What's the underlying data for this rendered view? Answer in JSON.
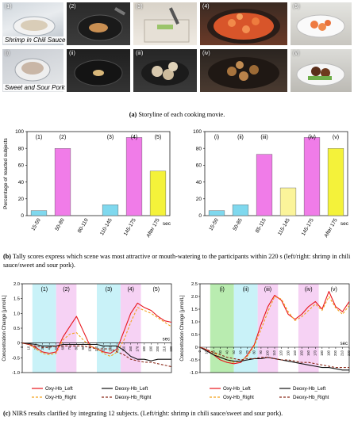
{
  "panel_a": {
    "row1_label": "Shrimp in Chili Sauce",
    "row2_label": "Sweet and Sour Pork",
    "row1_numbers": [
      "(1)",
      "(2)",
      "(3)",
      "(4)",
      "(5)"
    ],
    "row2_numbers": [
      "(i)",
      "(ii)",
      "(iii)",
      "(iv)",
      "(v)"
    ],
    "caption_letter": "(a)",
    "caption_text": " Storyline of each cooking movie."
  },
  "panel_b": {
    "caption_letter": "(b)",
    "caption_text": " Tally scores express which scene was most attractive or mouth-watering to the participants within 220 s (left/right: shrimp in chili sauce/sweet and sour pork)."
  },
  "panel_c": {
    "caption_letter": "(c)",
    "caption_text": " NIRS results clarified by integrating 12 subjects. (Left/right: shrimp in chili sauce/sweet and sour pork)."
  },
  "colors": {
    "bar_cyan": "#7fd8ee",
    "bar_magenta": "#f07ce8",
    "bar_yellow": "#f4f23a",
    "bar_paleyellow": "#fbf49a",
    "oxy_left": "#e8151b",
    "oxy_right": "#f3a21f",
    "deoxy_left": "#111111",
    "deoxy_right": "#8b2a1a",
    "band_cyan": "#c9f2f8",
    "band_magenta": "#f6d2f4",
    "band_green": "#b9ecb0"
  },
  "chart_data": [
    {
      "type": "bar",
      "ylabel": "Percentage of reacted subjects",
      "xunit": "sec",
      "ylim": [
        0,
        100
      ],
      "yticks": [
        0,
        20,
        40,
        60,
        80,
        100
      ],
      "categories": [
        "15-50",
        "50-80",
        "80-110",
        "110-145",
        "145-175",
        "After 175"
      ],
      "values": [
        6,
        80,
        0,
        13,
        93,
        53
      ],
      "bar_colors": [
        "cyan",
        "magenta",
        "cyan",
        "cyan",
        "magenta",
        "yellow"
      ],
      "scene_labels": [
        {
          "label": "(1)",
          "category": 0
        },
        {
          "label": "(2)",
          "category": 1
        },
        {
          "label": "(3)",
          "category": 3
        },
        {
          "label": "(4)",
          "category": 4
        },
        {
          "label": "(5)",
          "category": 5
        }
      ]
    },
    {
      "type": "bar",
      "ylabel": "",
      "xunit": "sec",
      "ylim": [
        0,
        100
      ],
      "yticks": [
        0,
        20,
        40,
        60,
        80,
        100
      ],
      "categories": [
        "15-50",
        "50-85",
        "85-115",
        "115-145",
        "145-175",
        "After 175"
      ],
      "values": [
        6,
        13,
        73,
        33,
        93,
        80
      ],
      "bar_colors": [
        "cyan",
        "cyan",
        "magenta",
        "paleyellow",
        "magenta",
        "yellow"
      ],
      "scene_labels": [
        {
          "label": "(i)",
          "category": 0
        },
        {
          "label": "(ii)",
          "category": 1
        },
        {
          "label": "(iii)",
          "category": 2
        },
        {
          "label": "(iv)",
          "category": 4
        },
        {
          "label": "(v)",
          "category": 5
        }
      ]
    },
    {
      "type": "line",
      "ylabel": "Concentration Change [μmol/L]",
      "xunit": "sec",
      "xlim": [
        0,
        220
      ],
      "ylim": [
        -1.0,
        2.0
      ],
      "yticks": [
        -1.0,
        -0.5,
        0.0,
        0.5,
        1.0,
        1.5,
        2.0
      ],
      "yticklabels": [
        "-1.0",
        "-0.5",
        "0",
        "0.5",
        "1.0",
        "1.5",
        "2.0"
      ],
      "xticks": [
        0,
        10,
        20,
        30,
        40,
        50,
        60,
        70,
        80,
        90,
        100,
        110,
        120,
        130,
        140,
        150,
        160,
        170,
        180,
        190,
        200,
        210,
        220
      ],
      "bands": [
        {
          "label": "(1)",
          "from": 15,
          "to": 50,
          "color": "cyan"
        },
        {
          "label": "(2)",
          "from": 50,
          "to": 80,
          "color": "magenta"
        },
        {
          "label": "(3)",
          "from": 110,
          "to": 145,
          "color": "cyan"
        },
        {
          "label": "(4)",
          "from": 145,
          "to": 175,
          "color": "magenta"
        },
        {
          "label": "(5)",
          "from": 175,
          "to": 220,
          "color": "none"
        }
      ],
      "x": [
        0,
        10,
        20,
        30,
        40,
        50,
        60,
        70,
        80,
        90,
        100,
        110,
        120,
        130,
        140,
        150,
        160,
        170,
        180,
        190,
        200,
        210,
        220
      ],
      "series": [
        {
          "name": "Oxy-Hb_Left",
          "color": "oxy_left",
          "dash": "solid",
          "values": [
            0,
            -0.05,
            -0.15,
            -0.3,
            -0.35,
            -0.3,
            0.2,
            0.55,
            0.9,
            0.4,
            -0.1,
            -0.2,
            -0.3,
            -0.35,
            -0.2,
            0.4,
            1.0,
            1.35,
            1.2,
            1.1,
            0.9,
            0.75,
            0.7
          ]
        },
        {
          "name": "Oxy-Hb_Right",
          "color": "oxy_right",
          "dash": "dash",
          "values": [
            0,
            -0.05,
            -0.2,
            -0.35,
            -0.4,
            -0.35,
            0.1,
            0.3,
            0.35,
            0.1,
            -0.1,
            -0.2,
            -0.35,
            -0.45,
            -0.3,
            0.1,
            0.7,
            1.2,
            1.1,
            1.0,
            0.85,
            0.7,
            0.55
          ]
        },
        {
          "name": "Deoxy-Hb_Left",
          "color": "deoxy_left",
          "dash": "solid",
          "values": [
            0,
            -0.02,
            -0.05,
            -0.1,
            -0.1,
            -0.1,
            -0.05,
            -0.05,
            -0.05,
            -0.05,
            -0.05,
            -0.05,
            -0.1,
            -0.1,
            -0.1,
            -0.25,
            -0.45,
            -0.55,
            -0.55,
            -0.6,
            -0.55,
            -0.55,
            -0.55
          ]
        },
        {
          "name": "Deoxy-Hb_Right",
          "color": "deoxy_right",
          "dash": "dash",
          "values": [
            0,
            -0.05,
            -0.1,
            -0.15,
            -0.15,
            -0.1,
            -0.1,
            -0.1,
            -0.1,
            -0.1,
            -0.15,
            -0.2,
            -0.2,
            -0.2,
            -0.3,
            -0.4,
            -0.55,
            -0.6,
            -0.65,
            -0.65,
            -0.7,
            -0.75,
            -0.8
          ]
        }
      ]
    },
    {
      "type": "line",
      "ylabel": "Concentration Change [μmol/L]",
      "xunit": "sec",
      "xlim": [
        0,
        220
      ],
      "ylim": [
        -1.0,
        2.5
      ],
      "yticks": [
        -1.0,
        -0.5,
        0.0,
        0.5,
        1.0,
        1.5,
        2.0,
        2.5
      ],
      "yticklabels": [
        "-1.0",
        "-0.5",
        "0",
        "0.5",
        "1.0",
        "1.5",
        "2.0",
        "2.5"
      ],
      "xticks": [
        0,
        10,
        20,
        30,
        40,
        50,
        60,
        70,
        80,
        90,
        100,
        110,
        120,
        130,
        140,
        150,
        160,
        170,
        180,
        190,
        200,
        210,
        220
      ],
      "bands": [
        {
          "label": "(i)",
          "from": 15,
          "to": 50,
          "color": "green"
        },
        {
          "label": "(ii)",
          "from": 50,
          "to": 85,
          "color": "cyan"
        },
        {
          "label": "(iii)",
          "from": 85,
          "to": 115,
          "color": "magenta"
        },
        {
          "label": "(iv)",
          "from": 145,
          "to": 175,
          "color": "magenta"
        },
        {
          "label": "(v)",
          "from": 175,
          "to": 220,
          "color": "none"
        }
      ],
      "x": [
        0,
        10,
        20,
        30,
        40,
        50,
        60,
        70,
        80,
        90,
        100,
        110,
        120,
        130,
        140,
        150,
        160,
        170,
        180,
        190,
        200,
        210,
        220
      ],
      "series": [
        {
          "name": "Oxy-Hb_Left",
          "color": "oxy_left",
          "dash": "solid",
          "values": [
            0,
            -0.1,
            -0.3,
            -0.5,
            -0.6,
            -0.65,
            -0.6,
            -0.3,
            0.1,
            0.9,
            1.6,
            2.05,
            1.85,
            1.3,
            1.1,
            1.3,
            1.6,
            1.8,
            1.5,
            2.2,
            1.6,
            1.4,
            1.8
          ]
        },
        {
          "name": "Oxy-Hb_Right",
          "color": "oxy_right",
          "dash": "dash",
          "values": [
            0,
            -0.1,
            -0.2,
            -0.4,
            -0.5,
            -0.6,
            -0.55,
            -0.35,
            0.05,
            0.7,
            1.4,
            2.0,
            1.9,
            1.4,
            1.05,
            1.2,
            1.45,
            1.7,
            1.45,
            2.0,
            1.55,
            1.3,
            1.65
          ]
        },
        {
          "name": "Deoxy-Hb_Left",
          "color": "deoxy_left",
          "dash": "solid",
          "values": [
            0,
            -0.15,
            -0.3,
            -0.4,
            -0.5,
            -0.55,
            -0.55,
            -0.5,
            -0.45,
            -0.45,
            -0.4,
            -0.45,
            -0.5,
            -0.55,
            -0.6,
            -0.65,
            -0.7,
            -0.75,
            -0.8,
            -0.8,
            -0.85,
            -0.9,
            -0.9
          ]
        },
        {
          "name": "Deoxy-Hb_Right",
          "color": "deoxy_right",
          "dash": "dash",
          "values": [
            0,
            -0.1,
            -0.2,
            -0.3,
            -0.4,
            -0.45,
            -0.5,
            -0.45,
            -0.45,
            -0.4,
            -0.4,
            -0.45,
            -0.5,
            -0.5,
            -0.55,
            -0.6,
            -0.6,
            -0.65,
            -0.7,
            -0.75,
            -0.8,
            -0.8,
            -0.8
          ]
        }
      ]
    }
  ]
}
